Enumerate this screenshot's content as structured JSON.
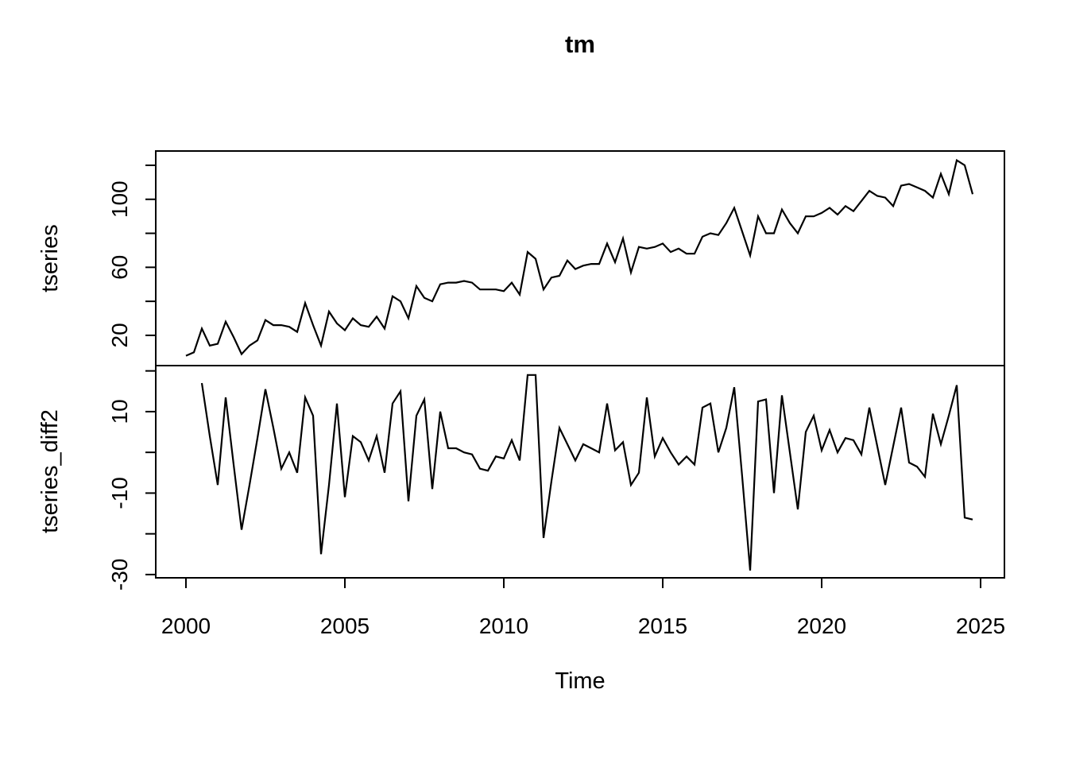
{
  "title": "tm",
  "xlabel": "Time",
  "chart_data": {
    "type": "line",
    "title": "tm",
    "xlabel": "Time",
    "line_color": "#000000",
    "background_color": "#ffffff",
    "grid": false,
    "legend": "none",
    "x_step": 0.25,
    "xlim": [
      1999.05,
      2025.75
    ],
    "xticks": [
      {
        "v": 2000,
        "label": "2000"
      },
      {
        "v": 2005,
        "label": "2005"
      },
      {
        "v": 2010,
        "label": "2010"
      },
      {
        "v": 2015,
        "label": "2015"
      },
      {
        "v": 2020,
        "label": "2020"
      },
      {
        "v": 2025,
        "label": "2025"
      }
    ],
    "panels": [
      {
        "name": "tseries",
        "ylabel": "tseries",
        "ylim": [
          2.2,
          128.4
        ],
        "yticks": [
          {
            "v": 20,
            "label": "20"
          },
          {
            "v": 40,
            "label": ""
          },
          {
            "v": 60,
            "label": "60"
          },
          {
            "v": 80,
            "label": ""
          },
          {
            "v": 100,
            "label": "100"
          },
          {
            "v": 120,
            "label": ""
          }
        ],
        "x_start": 2000.0,
        "values": [
          8,
          10,
          24,
          14,
          15,
          28,
          19,
          9,
          14,
          17,
          29,
          26,
          26,
          25,
          22,
          39,
          26,
          14,
          34,
          27,
          23,
          30,
          26,
          25,
          31,
          24,
          43,
          40,
          30,
          49,
          42,
          40,
          50,
          51,
          51,
          52,
          51,
          47,
          47,
          47,
          46,
          51,
          44,
          69,
          65,
          47,
          54,
          55,
          64,
          59,
          61,
          62,
          62,
          74,
          63,
          77,
          57,
          72,
          71,
          72,
          74,
          69,
          71,
          68,
          68,
          78,
          80,
          79,
          86,
          95,
          81,
          67,
          90,
          80,
          80,
          94,
          86,
          80,
          90,
          90,
          92,
          95,
          91,
          96,
          93,
          99,
          105,
          102,
          101,
          96,
          108,
          109,
          107,
          105,
          101,
          115,
          103,
          123,
          120,
          103
        ]
      },
      {
        "name": "tseries_diff2",
        "ylabel": "tseries_diff2",
        "ylim": [
          -30.8,
          21.3
        ],
        "yticks": [
          {
            "v": -30,
            "label": "-30"
          },
          {
            "v": -20,
            "label": ""
          },
          {
            "v": -10,
            "label": "-10"
          },
          {
            "v": 0,
            "label": ""
          },
          {
            "v": 10,
            "label": "10"
          },
          {
            "v": 20,
            "label": ""
          }
        ],
        "x_start": 2000.5,
        "values": [
          17,
          4,
          -8,
          13.5,
          -3,
          -19,
          -8,
          3.5,
          15.5,
          6,
          -4,
          0,
          -5,
          13.5,
          9,
          -25,
          -8,
          12,
          -11,
          4,
          2.5,
          -2,
          4,
          -5,
          12,
          15,
          -12,
          9,
          13,
          -9,
          10,
          1,
          1,
          0,
          -0.5,
          -4,
          -4.5,
          -1,
          -1.5,
          3,
          -2,
          19,
          19,
          -21,
          -7,
          6,
          2,
          -2,
          2,
          1,
          0,
          12,
          0.5,
          2.5,
          -8,
          -5,
          13.5,
          -1,
          3.5,
          0,
          -3,
          -1,
          -3,
          11,
          12,
          0,
          6,
          16,
          -6,
          -29,
          12.5,
          13,
          -10,
          14,
          0,
          -14,
          5,
          9,
          0.5,
          5.5,
          0,
          3.5,
          3,
          -0.5,
          11,
          1.5,
          -8,
          1.5,
          11,
          -2.5,
          -3.5,
          -6,
          9.5,
          2,
          9,
          16.5,
          -16,
          -16.5
        ]
      }
    ]
  }
}
